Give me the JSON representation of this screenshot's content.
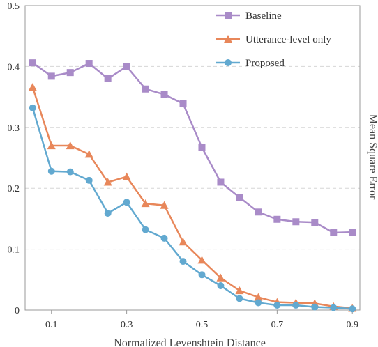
{
  "chart_data": {
    "type": "line",
    "xlabel": "Normalized Levenshtein Distance",
    "ylabel": "Mean Square Error",
    "xlim": [
      0.03,
      0.92
    ],
    "ylim": [
      0,
      0.5
    ],
    "x_ticks": [
      0.1,
      0.3,
      0.5,
      0.7,
      0.9
    ],
    "y_ticks": [
      0,
      0.1,
      0.2,
      0.3,
      0.4,
      0.5
    ],
    "x_tick_labels": [
      "0.1",
      "0.3",
      "0.5",
      "0.7",
      "0.9"
    ],
    "y_tick_labels": [
      "0",
      "0.1",
      "0.2",
      "0.3",
      "0.4",
      "0.5"
    ],
    "grid": "horizontal dashed",
    "legend_position": "top-right",
    "x": [
      0.05,
      0.1,
      0.15,
      0.2,
      0.25,
      0.3,
      0.35,
      0.4,
      0.45,
      0.5,
      0.55,
      0.6,
      0.65,
      0.7,
      0.75,
      0.8,
      0.85,
      0.9
    ],
    "series": [
      {
        "name": "Baseline",
        "color": "#a98bc8",
        "marker": "square",
        "values": [
          0.406,
          0.384,
          0.39,
          0.405,
          0.38,
          0.4,
          0.363,
          0.354,
          0.339,
          0.267,
          0.21,
          0.185,
          0.161,
          0.149,
          0.145,
          0.144,
          0.127,
          0.128
        ]
      },
      {
        "name": "Utterance-level only",
        "color": "#e8875a",
        "marker": "triangle",
        "values": [
          0.366,
          0.27,
          0.27,
          0.256,
          0.21,
          0.219,
          0.175,
          0.172,
          0.112,
          0.082,
          0.053,
          0.032,
          0.021,
          0.013,
          0.012,
          0.011,
          0.006,
          0.003
        ]
      },
      {
        "name": "Proposed",
        "color": "#62a9d0",
        "marker": "circle",
        "values": [
          0.332,
          0.228,
          0.227,
          0.213,
          0.159,
          0.177,
          0.132,
          0.118,
          0.08,
          0.058,
          0.04,
          0.019,
          0.012,
          0.008,
          0.008,
          0.005,
          0.004,
          0.002
        ]
      }
    ]
  }
}
